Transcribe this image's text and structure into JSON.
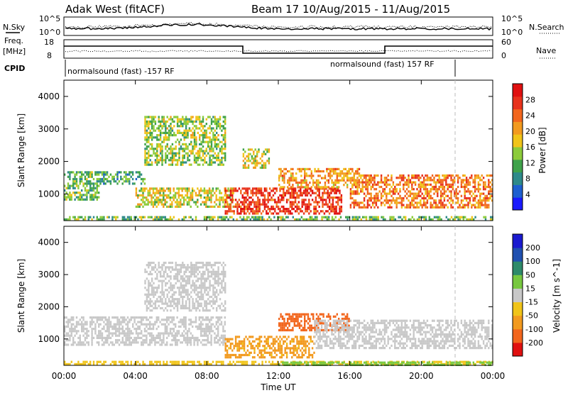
{
  "title": {
    "station": "Adak West (fitACF)",
    "beam_date": "Beam 17 10/Aug/2015 - 11/Aug/2015"
  },
  "panels": {
    "nsky_label": "N.Sky",
    "nsky_ticks": [
      "10^5",
      "10^0"
    ],
    "nsky_right_ticks": [
      "10^5",
      "10^0"
    ],
    "nsearch_label": "N.Search",
    "freq_label_1": "Freq.",
    "freq_label_2": "[MHz]",
    "freq_ticks": [
      "18",
      "8"
    ],
    "nave_ticks": [
      "60",
      "0"
    ],
    "nave_label": "Nave",
    "cpid_label": "CPID",
    "cpid_segments": [
      {
        "label": "normalsound (fast) -157 RF",
        "start_h": 0,
        "end_h": 22
      },
      {
        "label": "normalsound (fast) 157 RF",
        "start_h": 22,
        "end_h": 24
      }
    ]
  },
  "axes": {
    "ylabel": "Slant Range [km]",
    "xlabel": "Time UT",
    "xticks": [
      "00:00",
      "04:00",
      "08:00",
      "12:00",
      "16:00",
      "20:00",
      "00:00"
    ],
    "yticks": [
      "1000",
      "2000",
      "3000",
      "4000"
    ]
  },
  "colorbars": {
    "power": {
      "label": "Power [dB]",
      "ticks": [
        "4",
        "8",
        "12",
        "16",
        "20",
        "24",
        "28"
      ],
      "colors": [
        "#1a1aff",
        "#1e5fd0",
        "#2e8a8a",
        "#3fa24a",
        "#8ccb3a",
        "#f0c419",
        "#f29a1f",
        "#f2661d",
        "#e8321c",
        "#e01010"
      ]
    },
    "velocity": {
      "label": "Velocity [m s^-1]",
      "ticks": [
        "200",
        "100",
        "50",
        "15",
        "-15",
        "-50",
        "-100",
        "-200"
      ],
      "colors": [
        "#1a1ad0",
        "#2050b0",
        "#2e8a6a",
        "#78c840",
        "#c8c8c8",
        "#f0c419",
        "#f29a1f",
        "#f2661d",
        "#e01010"
      ]
    }
  },
  "chart_data": [
    {
      "type": "heatmap",
      "title": "Power [dB]",
      "xlabel": "Time UT",
      "ylabel": "Slant Range [km]",
      "xlim_hours": [
        0,
        24
      ],
      "ylim": [
        180,
        4500
      ],
      "features": [
        {
          "t_start": 0.0,
          "t_end": 24.0,
          "range_min": 200,
          "range_max": 320,
          "level_db": 10
        },
        {
          "t_start": 0.0,
          "t_end": 2.0,
          "range_min": 800,
          "range_max": 1700,
          "level_db": 10
        },
        {
          "t_start": 2.0,
          "t_end": 4.5,
          "range_min": 1300,
          "range_max": 1700,
          "level_db": 8
        },
        {
          "t_start": 4.0,
          "t_end": 9.5,
          "range_min": 600,
          "range_max": 1200,
          "level_db": 14
        },
        {
          "t_start": 4.5,
          "t_end": 9.0,
          "range_min": 1900,
          "range_max": 3400,
          "level_db": 12
        },
        {
          "t_start": 9.0,
          "t_end": 15.5,
          "range_min": 400,
          "range_max": 1200,
          "level_db": 24
        },
        {
          "t_start": 10.0,
          "t_end": 11.5,
          "range_min": 1800,
          "range_max": 2400,
          "level_db": 14
        },
        {
          "t_start": 12.0,
          "t_end": 16.5,
          "range_min": 1200,
          "range_max": 1800,
          "level_db": 18
        },
        {
          "t_start": 16.0,
          "t_end": 24.0,
          "range_min": 600,
          "range_max": 1600,
          "level_db": 20
        }
      ]
    },
    {
      "type": "heatmap",
      "title": "Velocity [m s^-1]",
      "xlabel": "Time UT",
      "ylabel": "Slant Range [km]",
      "xlim_hours": [
        0,
        24
      ],
      "ylim": [
        180,
        4500
      ],
      "features": [
        {
          "t_start": 0.0,
          "t_end": 24.0,
          "range_min": 200,
          "range_max": 320,
          "velocity": -30
        },
        {
          "t_start": 0.0,
          "t_end": 9.0,
          "range_min": 800,
          "range_max": 1700,
          "velocity": 0
        },
        {
          "t_start": 4.5,
          "t_end": 9.0,
          "range_min": 1900,
          "range_max": 3400,
          "velocity": 0
        },
        {
          "t_start": 9.0,
          "t_end": 14.0,
          "range_min": 400,
          "range_max": 1100,
          "velocity": -60
        },
        {
          "t_start": 12.0,
          "t_end": 16.0,
          "range_min": 1300,
          "range_max": 1800,
          "velocity": -120
        },
        {
          "t_start": 14.0,
          "t_end": 24.0,
          "range_min": 700,
          "range_max": 1600,
          "velocity": 0
        },
        {
          "t_start": 12.0,
          "t_end": 24.0,
          "range_min": 200,
          "range_max": 300,
          "velocity": 30
        }
      ]
    }
  ]
}
